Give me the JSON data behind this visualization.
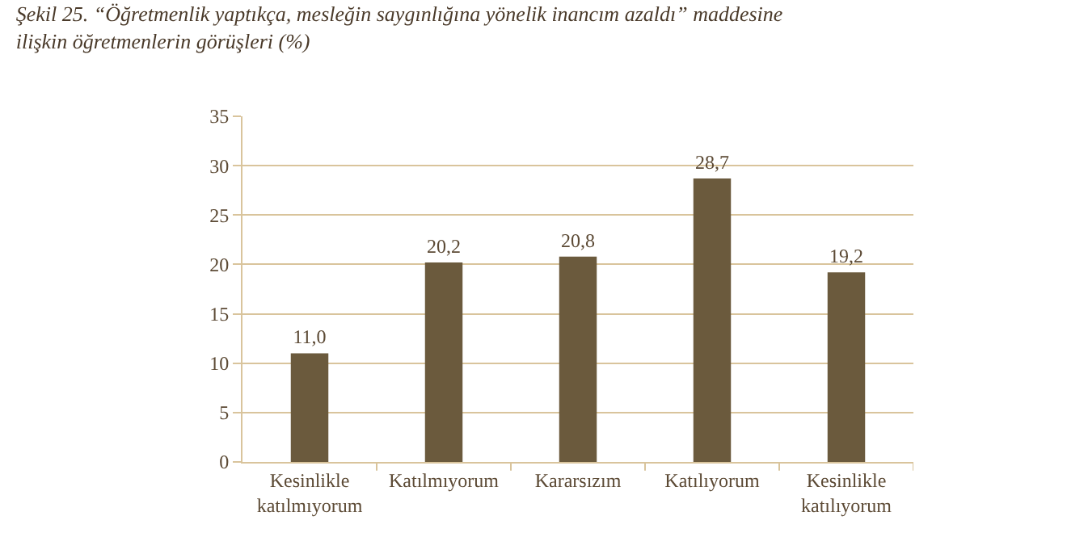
{
  "chart_data": {
    "type": "bar",
    "title": "Şekil 25. “Öğretmenlik yaptıkça, mesleğin saygınlığına yönelik inancım azaldı” maddesine ilişkin öğretmenlerin görüşleri (%)",
    "categories": [
      "Kesinlikle katılmıyorum",
      "Katılmıyorum",
      "Kararsızım",
      "Katılıyorum",
      "Kesinlikle katılıyorum"
    ],
    "values": [
      11.0,
      20.2,
      20.8,
      28.7,
      19.2
    ],
    "value_labels": [
      "11,0",
      "20,2",
      "20,8",
      "28,7",
      "19,2"
    ],
    "color": "#6b5a3d",
    "ylim": [
      0,
      35
    ],
    "yticks": [
      0,
      5,
      10,
      15,
      20,
      25,
      30,
      35
    ],
    "grid": "y"
  }
}
